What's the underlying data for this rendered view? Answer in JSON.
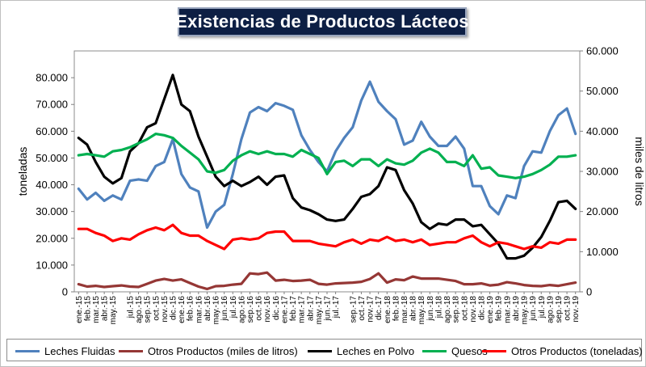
{
  "title": "Existencias de Productos Lácteos",
  "colors": {
    "leches_fluidas": "#4f81bd",
    "otros_miles": "#953735",
    "leches_polvo": "#000000",
    "quesos": "#00b050",
    "otros_toneladas": "#ff0000"
  },
  "chart_data": {
    "type": "line",
    "title": "Existencias de Productos Lácteos",
    "ylabel_left": "toneladas",
    "ylabel_right": "miles de litros",
    "ylim_left": [
      0,
      90000
    ],
    "ylim_right": [
      0,
      60000
    ],
    "yticks_left": [
      "0",
      "10.000",
      "20.000",
      "30.000",
      "40.000",
      "50.000",
      "60.000",
      "70.000",
      "80.000"
    ],
    "yticks_right": [
      "0",
      "10.000",
      "20.000",
      "30.000",
      "40.000",
      "50.000",
      "60.000"
    ],
    "x": [
      "ene.-15",
      "feb.-15",
      "mar.-15",
      "abr.-15",
      "may.-15",
      "jun.-15",
      "jul.-15",
      "ago.-15",
      "sep.-15",
      "oct.-15",
      "nov.-15",
      "dic.-15",
      "ene.-16",
      "feb.-16",
      "mar.-16",
      "abr.-16",
      "may.-16",
      "jun.-16",
      "jul.-16",
      "ago.-16",
      "sep.-16",
      "oct.-16",
      "nov.-16",
      "dic.-16",
      "ene.-17",
      "feb.-17",
      "mar.-17",
      "abr.-17",
      "may.-17",
      "jun.-17",
      "jul.-17",
      "ago.-17",
      "sep.-17",
      "oct.-17",
      "nov.-17",
      "dic.-17",
      "ene.-18",
      "feb.-18",
      "mar.-18",
      "abr.-18",
      "may.-18",
      "jun.-18",
      "jul.-18",
      "ago.-18",
      "sep.-18",
      "oct.-18",
      "nov.-18",
      "dic.-18",
      "ene.-19",
      "feb.-19",
      "mar.-19",
      "abr.-19",
      "may.-19",
      "jun.-19",
      "jul.-19",
      "ago.-19",
      "sep.-19",
      "oct.-19",
      "nov.-19"
    ],
    "xtick_labels": [
      "ene.-15",
      "feb.-15",
      "mar.-15",
      "abr.-15",
      "may.-15",
      "jul.-15",
      "ago.-15",
      "sep.-15",
      "oct.-15",
      "nov.-15",
      "dic.-15",
      "ene.-16",
      "feb.-16",
      "mar.-16",
      "abr.-16",
      "may.-16",
      "jun.-16",
      "jul.-16",
      "ago.-16",
      "sep.-16",
      "oct.-16",
      "nov.-16",
      "dic.-16",
      "ene.-17",
      "feb.-17",
      "mar.-17",
      "abr.-17",
      "may.-17",
      "jun.-17",
      "jul.-17",
      "sep.-17",
      "oct.-17",
      "nov.-17",
      "dic.-17",
      "ene.-18",
      "feb.-18",
      "mar.-18",
      "abr.-18",
      "may.-18",
      "jun.-18",
      "jul.-18",
      "ago.-18",
      "sep.-18",
      "oct.-18",
      "nov.-18",
      "dic.-18",
      "ene.-19",
      "feb.-19",
      "mar.-19",
      "abr.-19",
      "may.-19",
      "jun.-19",
      "jul.-19",
      "ago.-19",
      "sep.-19",
      "oct.-19",
      "nov.-19"
    ],
    "series": [
      {
        "key": "leches_fluidas",
        "name": "Leches Fluidas",
        "axis": "left",
        "values": [
          38500,
          34500,
          37000,
          34000,
          36000,
          34500,
          41500,
          42000,
          41500,
          47000,
          48500,
          57000,
          44000,
          39000,
          37500,
          24000,
          30000,
          32500,
          44000,
          57000,
          67000,
          69000,
          67500,
          70500,
          69500,
          68000,
          58500,
          53000,
          48500,
          45000,
          52500,
          57500,
          61500,
          71500,
          78500,
          71000,
          67500,
          64500,
          55000,
          56500,
          63500,
          58000,
          54500,
          54500,
          58000,
          53500,
          39500,
          39500,
          32000,
          29000,
          36000,
          35000,
          47000,
          52500,
          52000,
          60000,
          66000,
          68500,
          59000
        ]
      },
      {
        "key": "otros_miles",
        "name": "Otros Productos (miles de litros)",
        "axis": "right",
        "values": [
          1900,
          1300,
          1500,
          1200,
          1400,
          1600,
          1300,
          1200,
          2000,
          2800,
          3200,
          2800,
          3100,
          2200,
          1300,
          700,
          1400,
          1500,
          1800,
          2000,
          4600,
          4400,
          4800,
          2800,
          3000,
          2700,
          2800,
          3000,
          2000,
          1800,
          2100,
          2200,
          2300,
          2500,
          3200,
          4600,
          2300,
          3100,
          2900,
          3800,
          3300,
          3300,
          3300,
          3000,
          2700,
          1900,
          1900,
          2100,
          1600,
          1800,
          2400,
          2100,
          1700,
          1500,
          1400,
          1700,
          1500,
          1900,
          2300
        ]
      },
      {
        "key": "leches_polvo",
        "name": "Leches en Polvo",
        "axis": "left",
        "values": [
          57500,
          55000,
          48500,
          43000,
          40500,
          42500,
          52500,
          55500,
          61500,
          63000,
          72000,
          81000,
          70000,
          67500,
          58000,
          50500,
          43000,
          39500,
          41500,
          39500,
          41000,
          43000,
          40000,
          43000,
          43500,
          35000,
          31500,
          30500,
          29000,
          27000,
          26500,
          27000,
          31000,
          35500,
          36500,
          39500,
          46500,
          45500,
          38000,
          33000,
          26000,
          23500,
          25500,
          25000,
          27000,
          27000,
          24500,
          25000,
          21500,
          18000,
          12500,
          12500,
          13500,
          16500,
          20500,
          26500,
          33500,
          34000,
          31000
        ]
      },
      {
        "key": "quesos",
        "name": "Quesos",
        "axis": "left",
        "values": [
          51000,
          51500,
          51000,
          50500,
          52500,
          53000,
          54000,
          55500,
          57000,
          59000,
          58500,
          57500,
          54500,
          52000,
          49500,
          45000,
          44500,
          45500,
          49000,
          51000,
          52500,
          51500,
          52500,
          51500,
          51500,
          50500,
          53000,
          51500,
          50000,
          44000,
          48500,
          49000,
          47000,
          49500,
          49500,
          47000,
          49500,
          48000,
          47500,
          49000,
          52000,
          53500,
          52000,
          48500,
          48500,
          47000,
          51000,
          46000,
          46500,
          43500,
          43000,
          42500,
          43000,
          44000,
          45500,
          47500,
          50500,
          50500,
          51000
        ]
      },
      {
        "key": "otros_toneladas",
        "name": "Otros Productos (toneladas)",
        "axis": "left",
        "values": [
          23500,
          23500,
          22000,
          21000,
          19000,
          20000,
          19500,
          21500,
          23000,
          24000,
          23000,
          25000,
          22000,
          21000,
          21000,
          19000,
          17500,
          16000,
          19500,
          20000,
          19500,
          20000,
          22000,
          22500,
          22500,
          19000,
          19000,
          19000,
          18000,
          17500,
          17000,
          18500,
          19500,
          18000,
          19500,
          19000,
          20500,
          19000,
          19500,
          18500,
          19500,
          17500,
          18000,
          18500,
          18500,
          20000,
          21000,
          18500,
          17000,
          18500,
          18000,
          17000,
          16000,
          17000,
          16500,
          18500,
          18000,
          19500,
          19500
        ]
      }
    ]
  },
  "legend": [
    {
      "key": "leches_fluidas",
      "label": "Leches Fluidas"
    },
    {
      "key": "otros_miles",
      "label": "Otros Productos (miles de litros)"
    },
    {
      "key": "leches_polvo",
      "label": "Leches en Polvo"
    },
    {
      "key": "quesos",
      "label": "Quesos"
    },
    {
      "key": "otros_toneladas",
      "label": "Otros Productos (toneladas)"
    }
  ]
}
